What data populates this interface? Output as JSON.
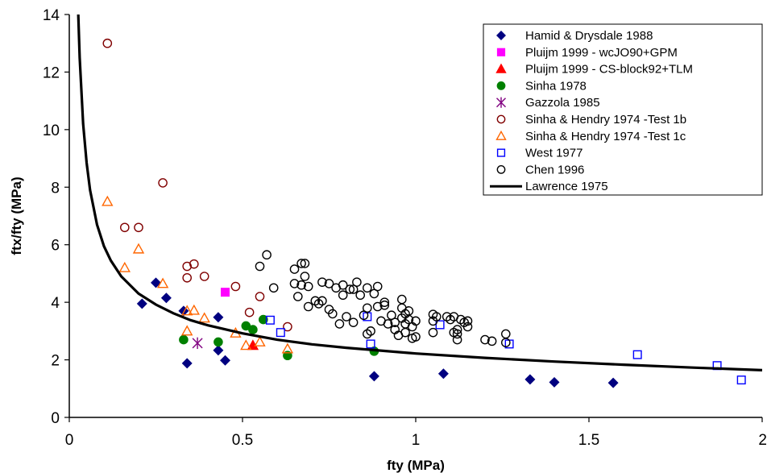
{
  "chart_data": {
    "type": "scatter",
    "xlabel": "fty (MPa)",
    "ylabel": "ftx/fty (MPa)",
    "xlim": [
      0,
      2
    ],
    "ylim": [
      0,
      14
    ],
    "xticks": [
      "0",
      "0.5",
      "1",
      "1.5",
      "2"
    ],
    "yticks": [
      "0",
      "2",
      "4",
      "6",
      "8",
      "10",
      "12",
      "14"
    ],
    "xtick_values": [
      0,
      0.5,
      1,
      1.5,
      2
    ],
    "ytick_values": [
      0,
      2,
      4,
      6,
      8,
      10,
      12,
      14
    ],
    "grid": false,
    "legend_position": "top-right",
    "series": [
      {
        "name": "Hamid & Drysdale 1988",
        "marker": "diamond",
        "color": "#000080",
        "filled": true,
        "points": [
          [
            0.21,
            3.95
          ],
          [
            0.25,
            4.68
          ],
          [
            0.28,
            4.15
          ],
          [
            0.33,
            3.7
          ],
          [
            0.34,
            1.88
          ],
          [
            0.43,
            3.48
          ],
          [
            0.43,
            2.33
          ],
          [
            0.45,
            1.98
          ],
          [
            0.88,
            1.43
          ],
          [
            1.08,
            1.52
          ],
          [
            1.33,
            1.32
          ],
          [
            1.4,
            1.22
          ],
          [
            1.57,
            1.2
          ]
        ]
      },
      {
        "name": "Pluijm 1999 - wcJO90+GPM",
        "marker": "square",
        "color": "#ff00ff",
        "filled": true,
        "points": [
          [
            0.45,
            4.35
          ]
        ]
      },
      {
        "name": "Pluijm 1999 - CS-block92+TLM",
        "marker": "triangle",
        "color": "#ff0000",
        "filled": true,
        "points": [
          [
            0.53,
            2.5
          ]
        ]
      },
      {
        "name": "Sinha 1978",
        "marker": "circle",
        "color": "#008000",
        "filled": true,
        "points": [
          [
            0.33,
            2.7
          ],
          [
            0.43,
            2.62
          ],
          [
            0.51,
            3.18
          ],
          [
            0.53,
            3.05
          ],
          [
            0.56,
            3.4
          ],
          [
            0.63,
            2.15
          ],
          [
            0.88,
            2.3
          ]
        ]
      },
      {
        "name": "Gazzola 1985",
        "marker": "asterisk",
        "color": "#800080",
        "filled": false,
        "points": [
          [
            0.37,
            2.58
          ]
        ]
      },
      {
        "name": "Sinha & Hendry 1974 -Test 1b",
        "marker": "circle",
        "color": "#800000",
        "filled": false,
        "points": [
          [
            0.11,
            13.0
          ],
          [
            0.27,
            8.15
          ],
          [
            0.16,
            6.6
          ],
          [
            0.2,
            6.6
          ],
          [
            0.34,
            5.25
          ],
          [
            0.36,
            5.33
          ],
          [
            0.34,
            4.85
          ],
          [
            0.39,
            4.9
          ],
          [
            0.48,
            4.55
          ],
          [
            0.55,
            4.2
          ],
          [
            0.52,
            3.65
          ],
          [
            0.63,
            3.15
          ]
        ]
      },
      {
        "name": "Sinha & Hendry 1974 -Test 1c",
        "marker": "triangle",
        "color": "#ff6600",
        "filled": false,
        "points": [
          [
            0.11,
            7.5
          ],
          [
            0.2,
            5.85
          ],
          [
            0.16,
            5.2
          ],
          [
            0.27,
            4.65
          ],
          [
            0.34,
            3.7
          ],
          [
            0.36,
            3.72
          ],
          [
            0.39,
            3.45
          ],
          [
            0.34,
            3.0
          ],
          [
            0.48,
            2.93
          ],
          [
            0.51,
            2.5
          ],
          [
            0.55,
            2.62
          ],
          [
            0.63,
            2.38
          ]
        ]
      },
      {
        "name": "West 1977",
        "marker": "square",
        "color": "#0000ff",
        "filled": false,
        "points": [
          [
            0.58,
            3.38
          ],
          [
            0.61,
            2.95
          ],
          [
            0.86,
            3.5
          ],
          [
            0.87,
            2.55
          ],
          [
            1.07,
            3.22
          ],
          [
            1.27,
            2.55
          ],
          [
            1.64,
            2.18
          ],
          [
            1.87,
            1.8
          ],
          [
            1.94,
            1.3
          ]
        ]
      },
      {
        "name": "Chen 1996",
        "marker": "circle",
        "color": "#000000",
        "filled": false,
        "points": [
          [
            0.55,
            5.25
          ],
          [
            0.57,
            5.65
          ],
          [
            0.59,
            4.5
          ],
          [
            0.65,
            5.15
          ],
          [
            0.65,
            4.65
          ],
          [
            0.67,
            5.35
          ],
          [
            0.68,
            5.35
          ],
          [
            0.68,
            4.9
          ],
          [
            0.66,
            4.2
          ],
          [
            0.67,
            4.6
          ],
          [
            0.69,
            4.55
          ],
          [
            0.69,
            3.85
          ],
          [
            0.71,
            4.05
          ],
          [
            0.72,
            3.95
          ],
          [
            0.73,
            4.7
          ],
          [
            0.73,
            4.05
          ],
          [
            0.75,
            4.65
          ],
          [
            0.75,
            3.75
          ],
          [
            0.76,
            3.6
          ],
          [
            0.77,
            4.5
          ],
          [
            0.78,
            3.25
          ],
          [
            0.79,
            4.25
          ],
          [
            0.79,
            4.6
          ],
          [
            0.8,
            3.5
          ],
          [
            0.81,
            4.45
          ],
          [
            0.82,
            3.3
          ],
          [
            0.82,
            4.45
          ],
          [
            0.83,
            4.7
          ],
          [
            0.84,
            4.25
          ],
          [
            0.85,
            3.55
          ],
          [
            0.86,
            3.8
          ],
          [
            0.86,
            4.5
          ],
          [
            0.86,
            2.9
          ],
          [
            0.87,
            3.0
          ],
          [
            0.88,
            4.3
          ],
          [
            0.89,
            3.85
          ],
          [
            0.89,
            4.55
          ],
          [
            0.9,
            3.35
          ],
          [
            0.91,
            3.9
          ],
          [
            0.91,
            4.0
          ],
          [
            0.92,
            3.25
          ],
          [
            0.93,
            3.55
          ],
          [
            0.94,
            3.05
          ],
          [
            0.94,
            3.3
          ],
          [
            0.95,
            2.85
          ],
          [
            0.96,
            3.45
          ],
          [
            0.96,
            3.8
          ],
          [
            0.96,
            4.1
          ],
          [
            0.97,
            3.25
          ],
          [
            0.97,
            3.6
          ],
          [
            0.97,
            2.95
          ],
          [
            0.98,
            3.4
          ],
          [
            0.98,
            3.7
          ],
          [
            0.99,
            3.15
          ],
          [
            0.99,
            2.75
          ],
          [
            1.0,
            3.35
          ],
          [
            1.0,
            2.8
          ],
          [
            1.05,
            3.58
          ],
          [
            1.05,
            3.35
          ],
          [
            1.05,
            2.95
          ],
          [
            1.06,
            3.5
          ],
          [
            1.1,
            3.4
          ],
          [
            1.11,
            3.5
          ],
          [
            1.12,
            3.05
          ],
          [
            1.12,
            2.7
          ],
          [
            1.13,
            3.4
          ],
          [
            1.14,
            3.3
          ],
          [
            1.15,
            3.15
          ],
          [
            1.15,
            3.35
          ],
          [
            1.2,
            2.7
          ],
          [
            1.22,
            2.65
          ],
          [
            1.26,
            2.6
          ],
          [
            1.26,
            2.9
          ],
          [
            1.11,
            2.95
          ],
          [
            1.09,
            3.5
          ],
          [
            1.12,
            2.9
          ]
        ]
      },
      {
        "name": "Lawrence 1975",
        "marker": "line",
        "color": "#000000",
        "filled": false,
        "formula_note": "",
        "curve_x": [
          0.025,
          0.03,
          0.04,
          0.05,
          0.06,
          0.08,
          0.1,
          0.12,
          0.15,
          0.2,
          0.25,
          0.3,
          0.35,
          0.4,
          0.5,
          0.6,
          0.7,
          0.8,
          1.0,
          1.2,
          1.4,
          1.6,
          1.8,
          2.0
        ],
        "curve_y": [
          14.3,
          12.5,
          10.2,
          8.85,
          7.9,
          6.7,
          5.95,
          5.45,
          4.9,
          4.3,
          3.92,
          3.62,
          3.38,
          3.2,
          2.92,
          2.7,
          2.54,
          2.42,
          2.22,
          2.07,
          1.94,
          1.83,
          1.73,
          1.64
        ]
      }
    ]
  }
}
